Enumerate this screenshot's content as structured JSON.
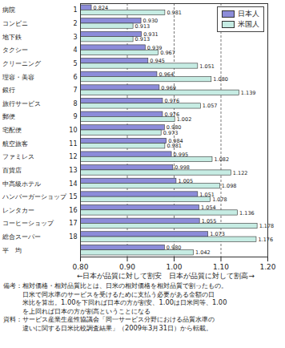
{
  "chart_data": {
    "type": "bar",
    "orientation": "horizontal",
    "categories": [
      "病院",
      "コンビニ",
      "地下鉄",
      "タクシー",
      "クリーニング",
      "理容・美容",
      "銀行",
      "旅行サービス",
      "郵便",
      "宅配便",
      "航空旅客",
      "ファミレス",
      "百貨店",
      "中高級ホテル",
      "ハンバーガーショップ",
      "レンタカー",
      "コーヒーショップ",
      "総合スーパー",
      "平　均"
    ],
    "category_numbers": [
      1,
      2,
      3,
      4,
      5,
      6,
      7,
      8,
      9,
      10,
      11,
      12,
      13,
      14,
      15,
      16,
      17,
      18,
      null
    ],
    "series": [
      {
        "name": "日本人",
        "color": "#8c8cd9",
        "values": [
          0.824,
          0.93,
          0.931,
          0.939,
          0.945,
          0.964,
          0.969,
          0.976,
          0.976,
          0.98,
          0.984,
          0.995,
          0.998,
          1.005,
          1.051,
          1.054,
          1.055,
          1.073,
          0.98
        ],
        "value_labels": [
          "0.824",
          "0.930",
          "0.931",
          "0.939",
          "0.945",
          "0.964",
          "0.969",
          "0.976",
          "0.976",
          "0.980",
          "0.984",
          "0.995",
          "0.998",
          "1.005",
          "1.051",
          "1.054",
          "1.055",
          "1.073",
          "0.980"
        ]
      },
      {
        "name": "米国人",
        "color": "#c6ece3",
        "values": [
          0.981,
          0.913,
          0.913,
          0.967,
          1.051,
          1.08,
          1.139,
          1.057,
          1.002,
          0.973,
          0.981,
          1.082,
          1.122,
          1.098,
          1.078,
          1.136,
          1.178,
          1.176,
          1.042
        ],
        "value_labels": [
          "0.981",
          "0.913",
          "0.913",
          "0.967",
          "1.051",
          "1.080",
          "1.139",
          "1.057",
          "1.002",
          "0.973",
          "0.981",
          "1.082",
          "1.122",
          "1.098",
          "1.078",
          "1.136",
          "1.178",
          "1.176",
          "1.042"
        ]
      }
    ],
    "x_label": "←日本が品質に対して割安　日本が品質に対して割高→",
    "xlim": [
      0.8,
      1.2
    ],
    "xticks": [
      {
        "value": 0.8,
        "label": "0.80"
      },
      {
        "value": 0.9,
        "label": "0.90"
      },
      {
        "value": 1.0,
        "label": "1.00"
      },
      {
        "value": 1.1,
        "label": "1.10"
      },
      {
        "value": 1.2,
        "label": "1.20"
      }
    ],
    "grid": true,
    "legend": "top-right",
    "data_labels": true,
    "notes": [
      "備考：相対価格・相対品質比とは、日米の相対価格を相対品質で割ったもの。",
      "日米で同水準のサービスを受けるために支払う必要がある金額の日",
      "米比を算出。1.00を下回れば日本の方が割安、1.00は日米同等、1.00",
      "を上回れば日本の方が割高ということになる",
      "資料：サービス産業生産性協議会「同一サービス分野における品質水準の",
      "違いに関する日米比較調査結果」（2009年3月31日）から転載。"
    ]
  }
}
